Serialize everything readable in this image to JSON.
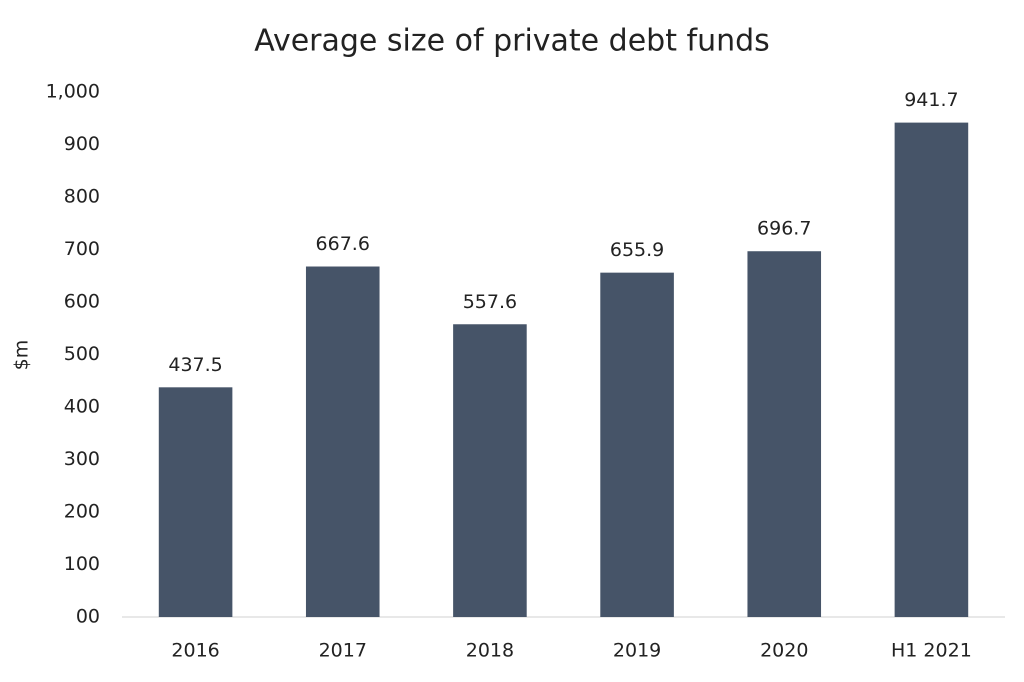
{
  "chart_data": {
    "type": "bar",
    "title": "Average size of private debt funds",
    "y_label": "$m",
    "categories": [
      "2016",
      "2017",
      "2018",
      "2019",
      "2020",
      "H1 2021"
    ],
    "values": [
      437.5,
      667.6,
      557.6,
      655.9,
      696.7,
      941.7
    ],
    "color": "#465468",
    "ylim": [
      0,
      1000
    ],
    "yticks": [
      {
        "value": 0,
        "label": "00"
      },
      100,
      200,
      300,
      400,
      500,
      600,
      700,
      800,
      900,
      {
        "value": 1000,
        "label": "1,000"
      }
    ],
    "grid": false
  }
}
